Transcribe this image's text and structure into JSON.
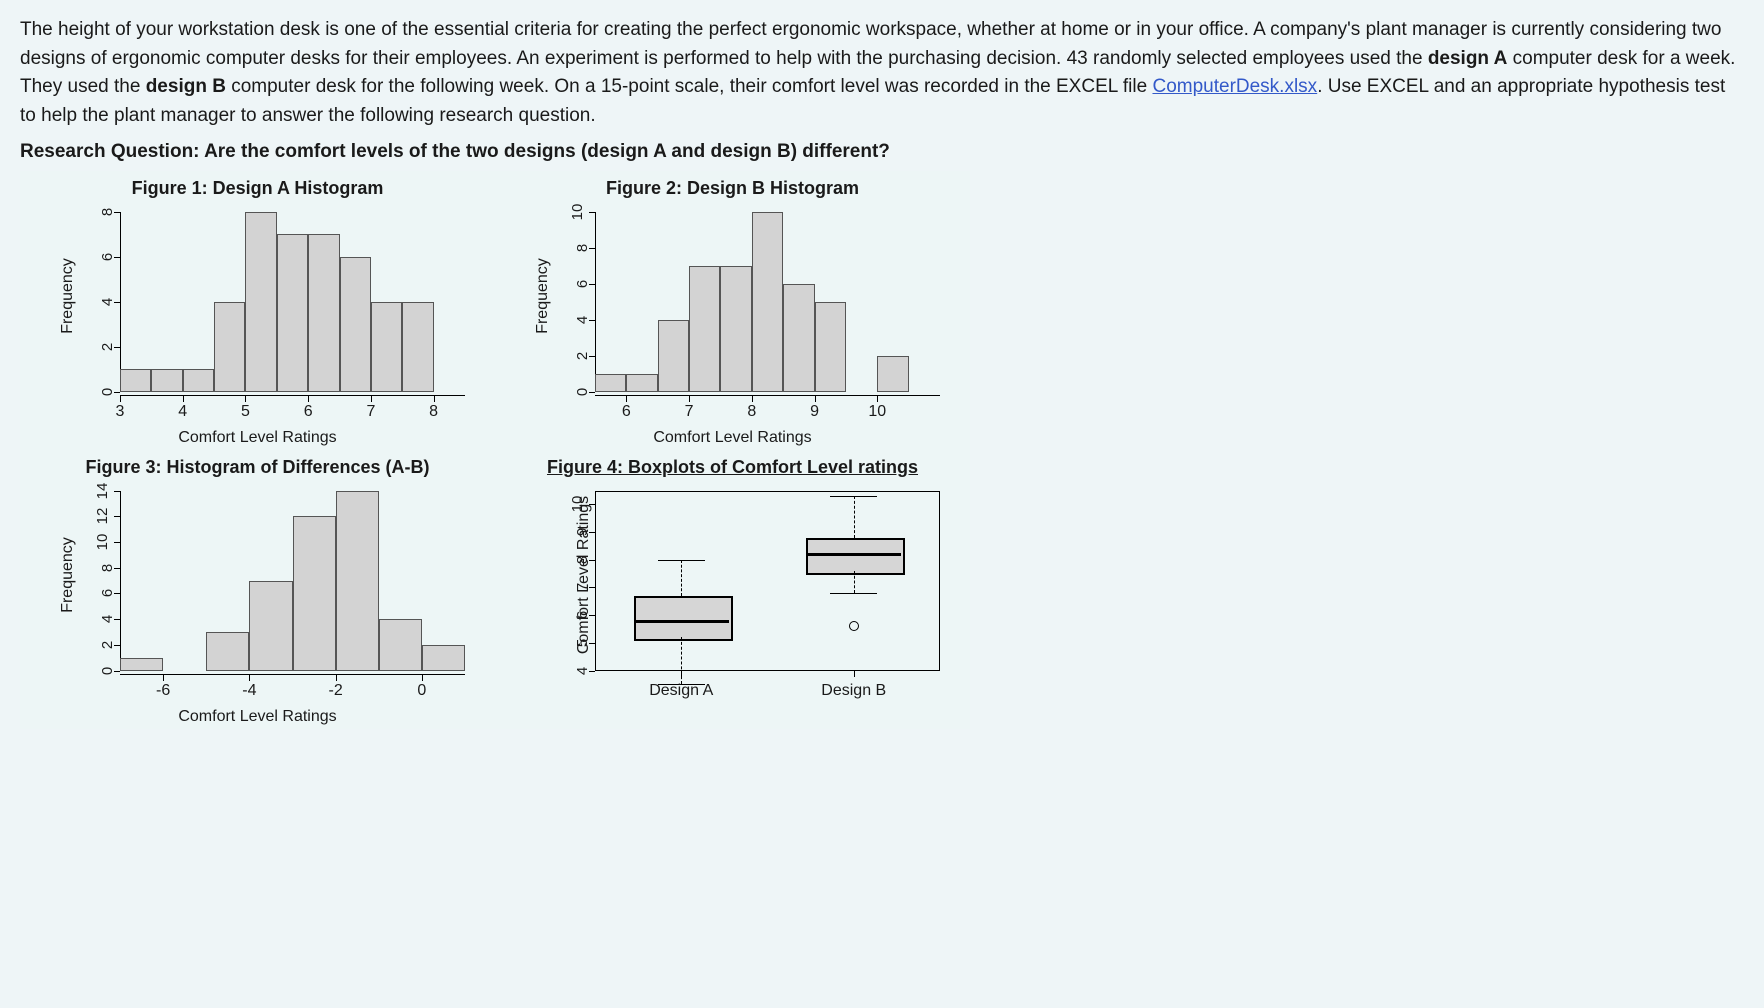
{
  "intro": {
    "p1a": "The height of your workstation desk is one of the essential criteria for creating the perfect ergonomic workspace, whether at home or in your office. A company's plant manager is currently considering two designs of ergonomic computer desks for their employees. An experiment is performed to help with the purchasing decision. 43 randomly selected employees used the ",
    "b1": "design A",
    "p1b": " computer desk for a week. They used the ",
    "b2": "design B",
    "p1c": " computer desk for the following week. On a 15-point scale, their comfort level was recorded in the EXCEL file ",
    "link_text": "ComputerDesk.xlsx",
    "p1d": ". Use EXCEL and an appropriate hypothesis test to help the plant manager to answer the following research question."
  },
  "research_question": "Research Question: Are the comfort levels of the two designs (design A and design B) different?",
  "fig1": {
    "title": "Figure 1: Design A Histogram",
    "ylabel": "Frequency",
    "xlabel": "Comfort Level Ratings",
    "type": "histogram",
    "ylim": [
      0,
      8
    ],
    "yticks": [
      0,
      2,
      4,
      6,
      8
    ],
    "xlim": [
      3,
      8.5
    ],
    "xticks": [
      3,
      4,
      5,
      6,
      7,
      8
    ],
    "bin_width": 0.5,
    "bar_color": "#d3d3d3",
    "border_color": "#555555",
    "bins": [
      {
        "x": 3.0,
        "h": 1
      },
      {
        "x": 3.5,
        "h": 1
      },
      {
        "x": 4.0,
        "h": 1
      },
      {
        "x": 4.5,
        "h": 4
      },
      {
        "x": 5.0,
        "h": 8
      },
      {
        "x": 5.5,
        "h": 7
      },
      {
        "x": 6.0,
        "h": 7
      },
      {
        "x": 6.5,
        "h": 6
      },
      {
        "x": 7.0,
        "h": 4
      },
      {
        "x": 7.5,
        "h": 4
      }
    ]
  },
  "fig2": {
    "title": "Figure 2: Design B Histogram",
    "ylabel": "Frequency",
    "xlabel": "Comfort Level Ratings",
    "type": "histogram",
    "ylim": [
      0,
      10
    ],
    "yticks": [
      0,
      2,
      4,
      6,
      8,
      10
    ],
    "xlim": [
      5.5,
      11
    ],
    "xticks": [
      6,
      7,
      8,
      9,
      10
    ],
    "bin_width": 0.5,
    "bar_color": "#d3d3d3",
    "border_color": "#555555",
    "bins": [
      {
        "x": 5.5,
        "h": 1
      },
      {
        "x": 6.0,
        "h": 1
      },
      {
        "x": 6.5,
        "h": 4
      },
      {
        "x": 7.0,
        "h": 7
      },
      {
        "x": 7.5,
        "h": 7
      },
      {
        "x": 8.0,
        "h": 10
      },
      {
        "x": 8.5,
        "h": 6
      },
      {
        "x": 9.0,
        "h": 5
      },
      {
        "x": 10.0,
        "h": 2
      }
    ]
  },
  "fig3": {
    "title": "Figure 3: Histogram of Differences (A-B)",
    "ylabel": "Frequency",
    "xlabel": "Comfort Level Ratings",
    "type": "histogram",
    "ylim": [
      0,
      14
    ],
    "yticks": [
      0,
      2,
      4,
      6,
      8,
      10,
      12,
      14
    ],
    "xlim": [
      -7,
      1
    ],
    "xticks": [
      -6,
      -4,
      -2,
      0
    ],
    "bin_width": 1,
    "bar_color": "#d3d3d3",
    "border_color": "#555555",
    "bins": [
      {
        "x": -7,
        "h": 1
      },
      {
        "x": -5,
        "h": 3
      },
      {
        "x": -4,
        "h": 7
      },
      {
        "x": -3,
        "h": 12
      },
      {
        "x": -2,
        "h": 14
      },
      {
        "x": -1,
        "h": 4
      },
      {
        "x": 0,
        "h": 2
      }
    ]
  },
  "fig4": {
    "title": "Figure 4: Boxplots of Comfort Level ratings",
    "ylabel": "Comfort Level Ratings",
    "type": "boxplot",
    "ylim": [
      4,
      10.5
    ],
    "yticks": [
      4,
      5,
      6,
      7,
      8,
      9,
      10
    ],
    "categories": [
      "Design A",
      "Design B"
    ],
    "box_color": "#d6d6d6",
    "boxes": [
      {
        "label": "Design A",
        "min": 3.5,
        "q1": 5.2,
        "median": 5.8,
        "q3": 6.7,
        "max": 8.0,
        "outliers": []
      },
      {
        "label": "Design B",
        "min": 6.8,
        "q1": 7.6,
        "median": 8.2,
        "q3": 8.8,
        "max": 10.3,
        "outliers": [
          5.6
        ]
      }
    ]
  },
  "colors": {
    "page_bg": "#eef5f7",
    "fig_bg": "#edf6f6",
    "link": "#3359c9"
  }
}
